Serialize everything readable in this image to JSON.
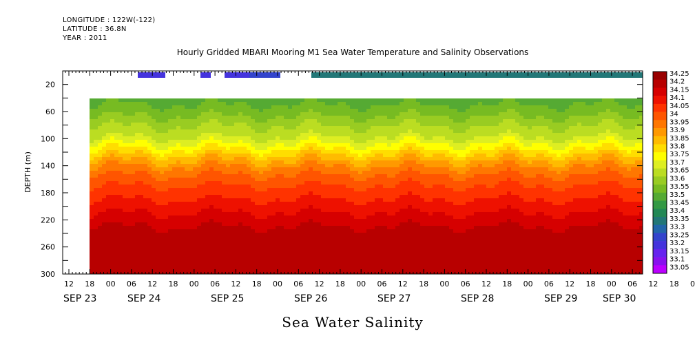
{
  "header": {
    "longitude": "LONGITUDE : 122W(-122)",
    "latitude": "LATITUDE : 36.8N",
    "year": "YEAR : 2011"
  },
  "chart_data": {
    "type": "heatmap",
    "title": "Hourly Gridded MBARI Mooring M1 Sea Water Temperature and Salinity Observations",
    "xlabel": "Sea Water Salinity",
    "ylabel": "DEPTH (m)",
    "x_hour_ticks": [
      "12",
      "18",
      "00",
      "06",
      "12",
      "18",
      "00",
      "06",
      "12",
      "18",
      "00",
      "06",
      "12",
      "18",
      "00",
      "06",
      "12",
      "18",
      "00",
      "06",
      "12",
      "18",
      "00",
      "06",
      "12",
      "18",
      "00",
      "06",
      "12",
      "18",
      "00",
      "06"
    ],
    "x_date_labels": [
      "SEP 23",
      "SEP 24",
      "SEP 25",
      "SEP 26",
      "SEP 27",
      "SEP 28",
      "SEP 29",
      "SEP 30"
    ],
    "xlim": [
      "SEP 23 06",
      "SEP 30 12"
    ],
    "ylim": [
      300,
      0
    ],
    "y_ticks": [
      20,
      60,
      100,
      140,
      180,
      220,
      260,
      300
    ],
    "colorbar_levels": [
      "34.25",
      "34.2",
      "34.15",
      "34.1",
      "34.05",
      "34",
      "33.95",
      "33.9",
      "33.85",
      "33.8",
      "33.75",
      "33.7",
      "33.65",
      "33.6",
      "33.55",
      "33.5",
      "33.45",
      "33.4",
      "33.35",
      "33.3",
      "33.25",
      "33.2",
      "33.15",
      "33.1",
      "33.05"
    ],
    "colorbar_colors": [
      "#990000",
      "#b80000",
      "#d60000",
      "#ee1100",
      "#ff3300",
      "#ff5500",
      "#ff7700",
      "#ff9900",
      "#ffbb00",
      "#ffdd00",
      "#ffff00",
      "#ddee22",
      "#bbdd22",
      "#99cc22",
      "#77bb22",
      "#55aa33",
      "#339944",
      "#228855",
      "#227777",
      "#2266aa",
      "#3344cc",
      "#4433dd",
      "#6622ee",
      "#8811ee",
      "#bb00ff"
    ],
    "profile": [
      {
        "depth": 40,
        "salinity": 33.5
      },
      {
        "depth": 60,
        "salinity": 33.55
      },
      {
        "depth": 80,
        "salinity": 33.62
      },
      {
        "depth": 100,
        "salinity": 33.68
      },
      {
        "depth": 120,
        "salinity": 33.8
      },
      {
        "depth": 140,
        "salinity": 33.92
      },
      {
        "depth": 160,
        "salinity": 34.0
      },
      {
        "depth": 180,
        "salinity": 34.05
      },
      {
        "depth": 200,
        "salinity": 34.1
      },
      {
        "depth": 220,
        "salinity": 34.15
      },
      {
        "depth": 240,
        "salinity": 34.2
      },
      {
        "depth": 260,
        "salinity": 34.22
      },
      {
        "depth": 300,
        "salinity": 34.2
      }
    ],
    "surface_salinity": 33.3
  }
}
